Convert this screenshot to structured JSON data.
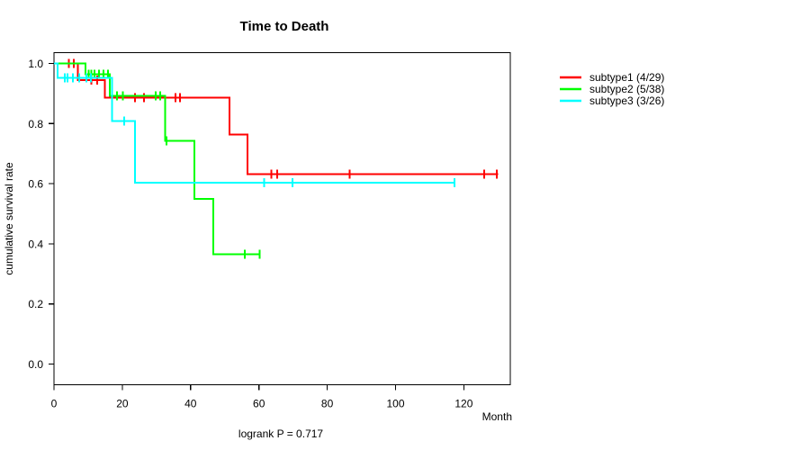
{
  "title": "Time to Death",
  "footnote": "logrank P = 0.717",
  "axes": {
    "x_label": "Month",
    "y_label": "cumulative survival rate",
    "x_ticks": [
      "0",
      "20",
      "40",
      "60",
      "80",
      "100",
      "120"
    ],
    "y_ticks": [
      "0.0",
      "0.2",
      "0.4",
      "0.6",
      "0.8",
      "1.0"
    ],
    "xlim": [
      0,
      133.6
    ],
    "ylim": [
      0,
      1
    ],
    "grid": "off"
  },
  "legend": {
    "position": "right-outside",
    "items": [
      {
        "label": "subtype1 (4/29)",
        "color": "#ff0000"
      },
      {
        "label": "subtype2 (5/38)",
        "color": "#00ff00"
      },
      {
        "label": "subtype3 (3/26)",
        "color": "#00ffff"
      }
    ]
  },
  "chart_data": {
    "type": "line",
    "subtype": "kaplan-meier-step",
    "title": "Time to Death",
    "xlabel": "Month",
    "ylabel": "cumulative survival rate",
    "annotation": "logrank P = 0.717",
    "series": [
      {
        "name": "subtype1",
        "events": "4/29",
        "color": "#ff0000",
        "steps": [
          [
            0,
            1.0
          ],
          [
            7.0,
            0.945
          ],
          [
            14.9,
            0.886
          ],
          [
            51.4,
            0.763
          ],
          [
            56.7,
            0.632
          ]
        ],
        "end_month": 130,
        "censor_marks": [
          [
            4.3,
            1.0
          ],
          [
            5.8,
            1.0
          ],
          [
            11.0,
            0.945
          ],
          [
            12.6,
            0.945
          ],
          [
            23.7,
            0.886
          ],
          [
            26.3,
            0.886
          ],
          [
            35.6,
            0.886
          ],
          [
            36.9,
            0.886
          ],
          [
            63.7,
            0.632
          ],
          [
            65.4,
            0.632
          ],
          [
            86.5,
            0.632
          ],
          [
            126.0,
            0.632
          ],
          [
            129.6,
            0.632
          ]
        ]
      },
      {
        "name": "subtype2",
        "events": "5/38",
        "color": "#00ff00",
        "steps": [
          [
            0,
            1.0
          ],
          [
            9.2,
            0.964
          ],
          [
            16.3,
            0.892
          ],
          [
            32.5,
            0.743
          ],
          [
            41.1,
            0.549
          ],
          [
            46.6,
            0.365
          ]
        ],
        "end_month": 60.2,
        "censor_marks": [
          [
            10.1,
            0.964
          ],
          [
            11.0,
            0.964
          ],
          [
            11.9,
            0.964
          ],
          [
            13.2,
            0.964
          ],
          [
            14.5,
            0.964
          ],
          [
            15.8,
            0.964
          ],
          [
            18.4,
            0.892
          ],
          [
            20.2,
            0.892
          ],
          [
            29.8,
            0.892
          ],
          [
            31.1,
            0.892
          ],
          [
            32.9,
            0.743
          ],
          [
            55.8,
            0.365
          ],
          [
            60.2,
            0.365
          ]
        ]
      },
      {
        "name": "subtype3",
        "events": "3/26",
        "color": "#00ffff",
        "steps": [
          [
            0,
            1.0
          ],
          [
            1.0,
            0.952
          ],
          [
            17.0,
            0.808
          ],
          [
            23.7,
            0.604
          ]
        ],
        "end_month": 117.5,
        "censor_marks": [
          [
            3.1,
            0.952
          ],
          [
            4.0,
            0.952
          ],
          [
            5.5,
            0.952
          ],
          [
            7.4,
            0.952
          ],
          [
            9.5,
            0.952
          ],
          [
            10.8,
            0.952
          ],
          [
            20.6,
            0.808
          ],
          [
            61.5,
            0.604
          ],
          [
            69.8,
            0.604
          ],
          [
            117.3,
            0.604
          ]
        ]
      }
    ]
  }
}
